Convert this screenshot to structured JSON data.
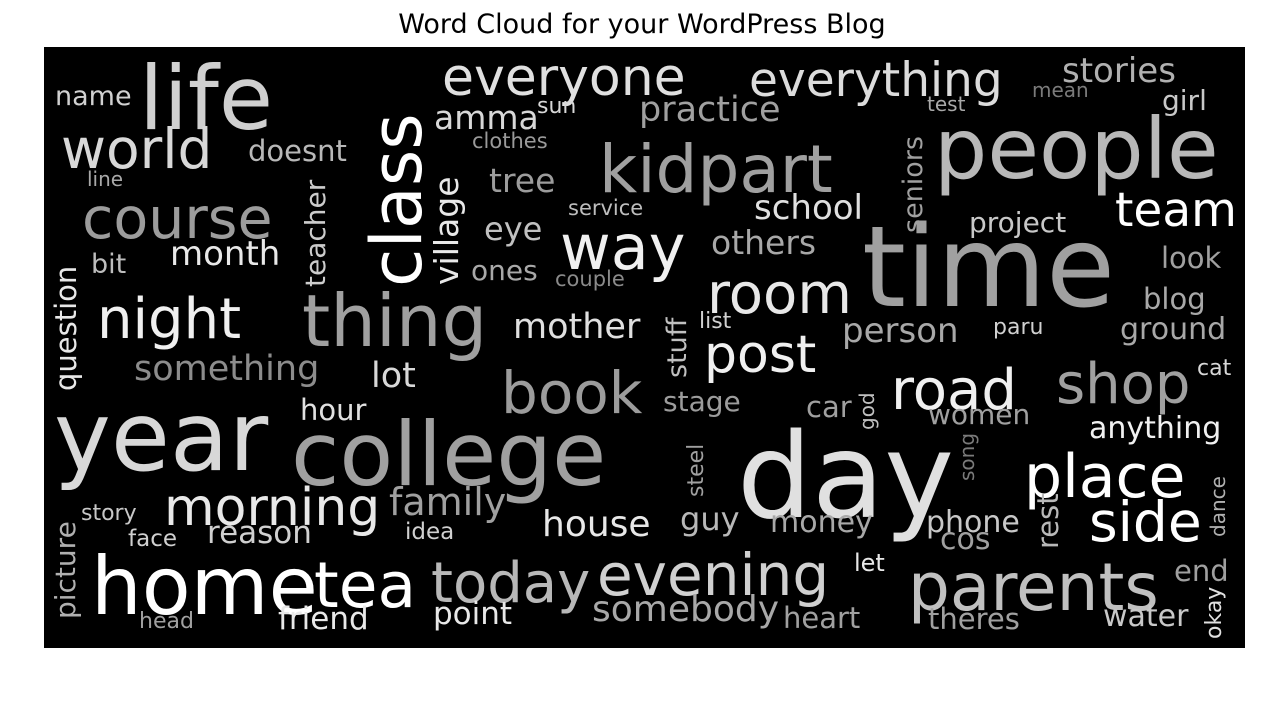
{
  "title": "Word Cloud for your WordPress Blog",
  "words": [
    {
      "text": "life",
      "color": "#d0d0d0"
    },
    {
      "text": "class",
      "color": "#ffffff"
    },
    {
      "text": "everyone",
      "color": "#e0e0e0"
    },
    {
      "text": "everything",
      "color": "#dcdcdc"
    },
    {
      "text": "stories",
      "color": "#b0b0b0"
    },
    {
      "text": "mean",
      "color": "#7a7a7a"
    },
    {
      "text": "girl",
      "color": "#c8c8c8"
    },
    {
      "text": "test",
      "color": "#a8a8a8"
    },
    {
      "text": "name",
      "color": "#d0d0d0"
    },
    {
      "text": "sun",
      "color": "#d8d8d8"
    },
    {
      "text": "amma",
      "color": "#d8d8d8"
    },
    {
      "text": "practice",
      "color": "#a0a0a0"
    },
    {
      "text": "people",
      "color": "#b8b8b8"
    },
    {
      "text": "world",
      "color": "#d8d8d8"
    },
    {
      "text": "doesnt",
      "color": "#b8b8b8"
    },
    {
      "text": "clothes",
      "color": "#9a9a9a"
    },
    {
      "text": "kidpart",
      "color": "#a0a0a0"
    },
    {
      "text": "line",
      "color": "#a8a8a8"
    },
    {
      "text": "village",
      "color": "#e8e8e8"
    },
    {
      "text": "tree",
      "color": "#9c9c9c"
    },
    {
      "text": "seniors",
      "color": "#a0a0a0"
    },
    {
      "text": "team",
      "color": "#ffffff"
    },
    {
      "text": "course",
      "color": "#9c9c9c"
    },
    {
      "text": "school",
      "color": "#e0e0e0"
    },
    {
      "text": "service",
      "color": "#bdbdbd"
    },
    {
      "text": "teacher",
      "color": "#cccccc"
    },
    {
      "text": "project",
      "color": "#c8c8c8"
    },
    {
      "text": "eye",
      "color": "#c0c0c0"
    },
    {
      "text": "way",
      "color": "#f0f0f0"
    },
    {
      "text": "others",
      "color": "#a8a8a8"
    },
    {
      "text": "time",
      "color": "#a0a0a0"
    },
    {
      "text": "month",
      "color": "#e8e8e8"
    },
    {
      "text": "bit",
      "color": "#bdbdbd"
    },
    {
      "text": "question",
      "color": "#e8e8e8"
    },
    {
      "text": "ones",
      "color": "#a8a8a8"
    },
    {
      "text": "couple",
      "color": "#8a8a8a"
    },
    {
      "text": "look",
      "color": "#a0a0a0"
    },
    {
      "text": "night",
      "color": "#f0f0f0"
    },
    {
      "text": "thing",
      "color": "#a0a0a0"
    },
    {
      "text": "room",
      "color": "#e8e8e8"
    },
    {
      "text": "stuff",
      "color": "#c0c0c0"
    },
    {
      "text": "blog",
      "color": "#a8a8a8"
    },
    {
      "text": "list",
      "color": "#d0d0d0"
    },
    {
      "text": "paru",
      "color": "#d0d0d0"
    },
    {
      "text": "mother",
      "color": "#e0e0e0"
    },
    {
      "text": "person",
      "color": "#a8a8a8"
    },
    {
      "text": "ground",
      "color": "#a8a8a8"
    },
    {
      "text": "post",
      "color": "#f0f0f0"
    },
    {
      "text": "something",
      "color": "#8c8c8c"
    },
    {
      "text": "lot",
      "color": "#d8d8d8"
    },
    {
      "text": "cat",
      "color": "#d8d8d8"
    },
    {
      "text": "shop",
      "color": "#a0a0a0"
    },
    {
      "text": "road",
      "color": "#f0f0f0"
    },
    {
      "text": "book",
      "color": "#9c9c9c"
    },
    {
      "text": "year",
      "color": "#d8d8d8"
    },
    {
      "text": "hour",
      "color": "#e0e0e0"
    },
    {
      "text": "stage",
      "color": "#9c9c9c"
    },
    {
      "text": "car",
      "color": "#a0a0a0"
    },
    {
      "text": "god",
      "color": "#c0c0c0"
    },
    {
      "text": "women",
      "color": "#a0a0a0"
    },
    {
      "text": "anything",
      "color": "#f0f0f0"
    },
    {
      "text": "college",
      "color": "#a0a0a0"
    },
    {
      "text": "steel",
      "color": "#a0a0a0"
    },
    {
      "text": "day",
      "color": "#e0e0e0"
    },
    {
      "text": "song",
      "color": "#7a7a7a"
    },
    {
      "text": "place",
      "color": "#ffffff"
    },
    {
      "text": "morning",
      "color": "#e8e8e8"
    },
    {
      "text": "family",
      "color": "#a0a0a0"
    },
    {
      "text": "story",
      "color": "#c8c8c8"
    },
    {
      "text": "picture",
      "color": "#b0b0b0"
    },
    {
      "text": "house",
      "color": "#e8e8e8"
    },
    {
      "text": "guy",
      "color": "#b8b8b8"
    },
    {
      "text": "money",
      "color": "#a8a8a8"
    },
    {
      "text": "phone",
      "color": "#c8c8c8"
    },
    {
      "text": "rest",
      "color": "#b8b8b8"
    },
    {
      "text": "side",
      "color": "#ffffff"
    },
    {
      "text": "dance",
      "color": "#b0b0b0"
    },
    {
      "text": "face",
      "color": "#d0d0d0"
    },
    {
      "text": "reason",
      "color": "#d0d0d0"
    },
    {
      "text": "idea",
      "color": "#d0d0d0"
    },
    {
      "text": "cos",
      "color": "#a0a0a0"
    },
    {
      "text": "home",
      "color": "#ffffff"
    },
    {
      "text": "tea",
      "color": "#ffffff"
    },
    {
      "text": "today",
      "color": "#b8b8b8"
    },
    {
      "text": "evening",
      "color": "#d0d0d0"
    },
    {
      "text": "let",
      "color": "#e8e8e8"
    },
    {
      "text": "parents",
      "color": "#c0c0c0"
    },
    {
      "text": "end",
      "color": "#a0a0a0"
    },
    {
      "text": "somebody",
      "color": "#a8a8a8"
    },
    {
      "text": "friend",
      "color": "#e8e8e8"
    },
    {
      "text": "point",
      "color": "#e8e8e8"
    },
    {
      "text": "head",
      "color": "#a0a0a0"
    },
    {
      "text": "heart",
      "color": "#a0a0a0"
    },
    {
      "text": "theres",
      "color": "#a0a0a0"
    },
    {
      "text": "water",
      "color": "#c8c8c8"
    },
    {
      "text": "okay",
      "color": "#e0e0e0"
    }
  ]
}
